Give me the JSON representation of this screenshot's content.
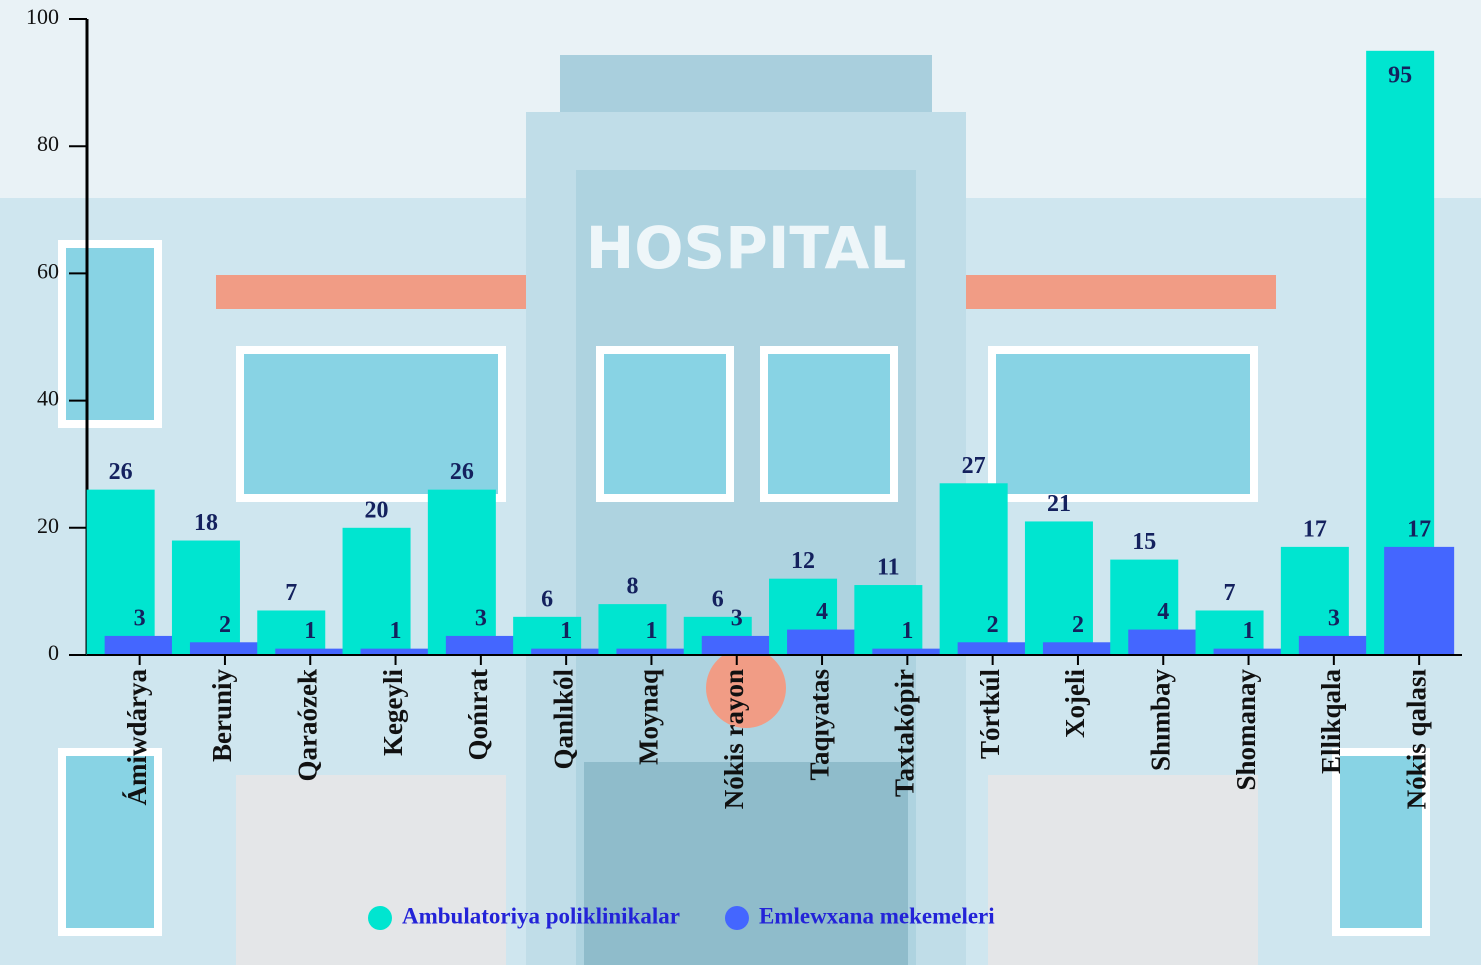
{
  "background": {
    "sign": "HOSPITAL"
  },
  "chart_data": {
    "type": "bar",
    "categories": [
      "Ámiwdárya",
      "Beruniy",
      "Qaraózek",
      "Kegeyli",
      "Qońırat",
      "Qanlıkól",
      "Moynaq",
      "Nókis rayon",
      "Taqıyatas",
      "Taxtakópir",
      "Tórtkúl",
      "Xojeli",
      "Shımbay",
      "Shomanay",
      "Ellikqala",
      "Nókis qalası"
    ],
    "series": [
      {
        "name": "Ambulatoriya poliklinikalar",
        "color": "#00e5d0",
        "values": [
          26,
          18,
          7,
          20,
          26,
          6,
          8,
          6,
          12,
          11,
          27,
          21,
          15,
          7,
          17,
          95
        ]
      },
      {
        "name": "Emlewxana mekemeleri",
        "color": "#4466ff",
        "values": [
          3,
          2,
          1,
          1,
          3,
          1,
          1,
          3,
          4,
          1,
          2,
          2,
          4,
          1,
          3,
          17
        ]
      }
    ],
    "ylim": [
      0,
      100
    ],
    "yticks": [
      0,
      20,
      40,
      60,
      80,
      100
    ],
    "legend": "bottom"
  }
}
